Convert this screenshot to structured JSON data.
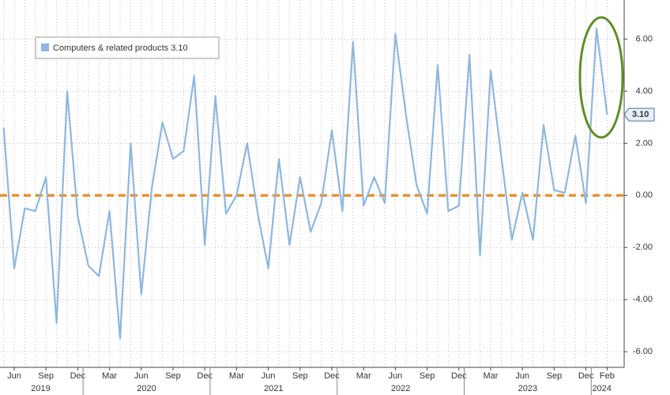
{
  "chart_data": {
    "type": "line",
    "categories": [
      null,
      "Jun",
      null,
      null,
      "Sep",
      null,
      null,
      "Dec",
      null,
      null,
      "Mar",
      null,
      null,
      "Jun",
      null,
      null,
      "Sep",
      null,
      null,
      "Dec",
      null,
      null,
      "Mar",
      null,
      null,
      "Jun",
      null,
      null,
      "Sep",
      null,
      null,
      "Dec",
      null,
      null,
      "Mar",
      null,
      null,
      "Jun",
      null,
      null,
      "Sep",
      null,
      null,
      "Dec",
      null,
      null,
      "Mar",
      null,
      null,
      "Jun",
      null,
      null,
      "Sep",
      null,
      null,
      "Dec",
      null,
      "Feb"
    ],
    "years": [
      "2019",
      "2020",
      "2021",
      "2022",
      "2023",
      "2024"
    ],
    "series": [
      {
        "name": "Computers & related products",
        "color": "#8db7df",
        "values": [
          2.6,
          -2.8,
          -0.5,
          -0.6,
          0.7,
          -4.9,
          4.0,
          -0.8,
          -2.7,
          -3.1,
          -0.6,
          -5.5,
          2.0,
          -3.8,
          0.3,
          2.8,
          1.4,
          1.7,
          4.6,
          -1.9,
          3.8,
          -0.7,
          0.0,
          2.0,
          -0.7,
          -2.8,
          1.4,
          -1.9,
          0.7,
          -1.4,
          -0.3,
          2.5,
          -0.6,
          5.9,
          -0.4,
          0.7,
          -0.3,
          6.2,
          3.1,
          0.4,
          -0.7,
          5.0,
          -0.6,
          -0.4,
          5.4,
          -2.3,
          4.8,
          1.5,
          -1.7,
          0.1,
          -1.7,
          2.7,
          0.2,
          0.1,
          2.3,
          -0.3,
          6.4,
          3.1
        ],
        "value_labels": [
          null,
          null,
          null,
          null,
          null,
          null,
          null,
          null,
          null,
          null,
          null,
          null,
          null,
          null,
          null,
          null,
          null,
          null,
          null,
          null,
          null,
          null,
          null,
          null,
          null,
          null,
          null,
          null,
          null,
          null,
          null,
          null,
          null,
          null,
          null,
          null,
          null,
          null,
          null,
          null,
          null,
          null,
          null,
          null,
          null,
          null,
          null,
          null,
          null,
          null,
          null,
          null,
          null,
          null,
          null,
          null,
          null,
          "3.10"
        ]
      }
    ],
    "reference_line": {
      "value": 0,
      "color": "#e8922c"
    },
    "ylim": [
      -6.6,
      7.5
    ],
    "yticks": [
      {
        "value": -6,
        "label": "-6.00"
      },
      {
        "value": -4,
        "label": "-4.00"
      },
      {
        "value": -2,
        "label": "-2.00"
      },
      {
        "value": 0,
        "label": "0.00"
      },
      {
        "value": 2,
        "label": "2.00"
      },
      {
        "value": 4,
        "label": "4.00"
      },
      {
        "value": 6,
        "label": "6.00"
      }
    ],
    "grid": true,
    "legend": "upper left"
  }
}
